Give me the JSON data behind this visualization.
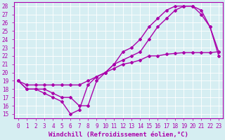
{
  "xlabel": "Windchill (Refroidissement éolien,°C)",
  "background_color": "#d6eef2",
  "grid_color": "#ffffff",
  "line_color": "#aa00aa",
  "xlim": [
    -0.5,
    23.5
  ],
  "ylim": [
    14.5,
    28.5
  ],
  "xticks": [
    0,
    1,
    2,
    3,
    4,
    5,
    6,
    7,
    8,
    9,
    10,
    11,
    12,
    13,
    14,
    15,
    16,
    17,
    18,
    19,
    20,
    21,
    22,
    23
  ],
  "yticks": [
    15,
    16,
    17,
    18,
    19,
    20,
    21,
    22,
    23,
    24,
    25,
    26,
    27,
    28
  ],
  "series1_x": [
    0,
    1,
    2,
    3,
    4,
    5,
    6,
    7,
    8,
    9,
    10,
    11,
    12,
    13,
    14,
    15,
    16,
    17,
    18,
    19,
    20,
    21,
    22,
    23
  ],
  "series1_y": [
    19,
    18,
    18,
    17.5,
    17,
    16.5,
    15,
    15.5,
    18.5,
    19.5,
    20,
    21,
    21.5,
    22,
    22.5,
    24,
    25.5,
    26.5,
    27.5,
    28,
    28,
    27.5,
    25.5,
    22.5
  ],
  "series2_x": [
    0,
    1,
    2,
    3,
    4,
    5,
    6,
    7,
    8,
    9,
    10,
    11,
    12,
    13,
    14,
    15,
    16,
    17,
    18,
    19,
    20,
    21,
    22,
    23
  ],
  "series2_y": [
    19,
    18,
    18,
    18,
    17.5,
    17,
    17,
    16,
    16,
    19,
    20,
    21,
    22.5,
    23,
    24,
    25.5,
    26.5,
    27.5,
    28,
    28,
    28,
    27,
    25.5,
    22
  ],
  "series3_x": [
    0,
    1,
    2,
    3,
    4,
    5,
    6,
    7,
    8,
    9,
    10,
    11,
    12,
    13,
    14,
    15,
    16,
    17,
    18,
    19,
    20,
    21,
    22,
    23
  ],
  "series3_y": [
    19,
    18.5,
    18.5,
    18.5,
    18.5,
    18.5,
    18.5,
    18.5,
    19,
    19.5,
    20,
    20.5,
    21,
    21.2,
    21.5,
    22,
    22,
    22.2,
    22.3,
    22.4,
    22.4,
    22.4,
    22.4,
    22.5
  ],
  "marker": "D",
  "markersize": 2,
  "linewidth": 1.0,
  "tick_fontsize": 5.5,
  "xlabel_fontsize": 6.5
}
